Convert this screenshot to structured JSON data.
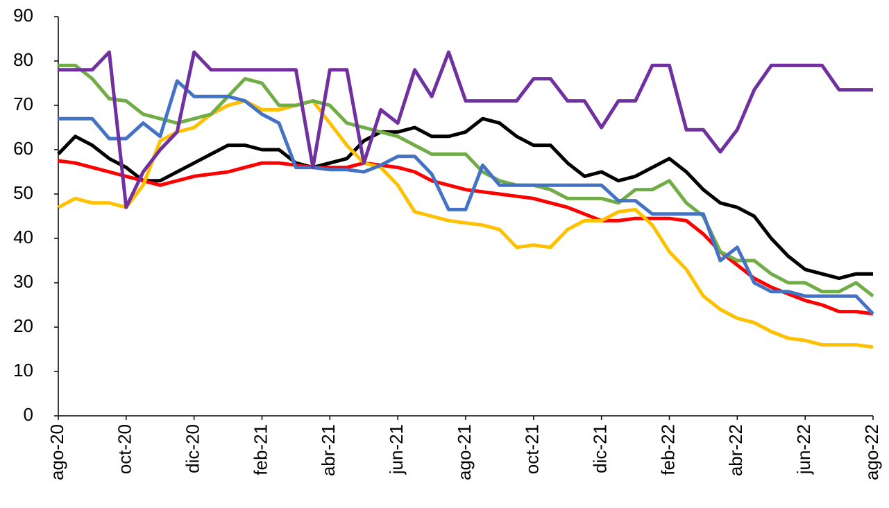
{
  "chart_data": {
    "type": "line",
    "x": [
      0,
      0.5,
      1,
      1.5,
      2,
      2.5,
      3,
      3.5,
      4,
      4.5,
      5,
      5.5,
      6,
      6.5,
      7,
      7.5,
      8,
      8.5,
      9,
      9.5,
      10,
      10.5,
      11,
      11.5,
      12,
      12.5,
      13,
      13.5,
      14,
      14.5,
      15,
      15.5,
      16,
      16.5,
      17,
      17.5,
      18,
      18.5,
      19,
      19.5,
      20,
      20.5,
      21,
      21.5,
      22,
      22.5,
      23,
      23.5,
      24
    ],
    "xlim": [
      0,
      24
    ],
    "xticks": [
      {
        "value": 0,
        "label": "ago-20"
      },
      {
        "value": 2,
        "label": "oct-20"
      },
      {
        "value": 4,
        "label": "dic-20"
      },
      {
        "value": 6,
        "label": "feb-21"
      },
      {
        "value": 8,
        "label": "abr-21"
      },
      {
        "value": 10,
        "label": "jun-21"
      },
      {
        "value": 12,
        "label": "ago-21"
      },
      {
        "value": 14,
        "label": "oct-21"
      },
      {
        "value": 16,
        "label": "dic-21"
      },
      {
        "value": 18,
        "label": "feb-22"
      },
      {
        "value": 20,
        "label": "abr-22"
      },
      {
        "value": 22,
        "label": "jun-22"
      },
      {
        "value": 24,
        "label": "ago-22"
      }
    ],
    "ylim": [
      0,
      90
    ],
    "yticks": [
      0,
      10,
      20,
      30,
      40,
      50,
      60,
      70,
      80,
      90
    ],
    "grid": false,
    "series": [
      {
        "color": "#000000",
        "values": [
          59,
          63,
          61,
          58,
          56,
          53,
          53,
          55,
          57,
          59,
          61,
          61,
          60,
          60,
          57,
          56,
          57,
          58,
          62,
          64,
          64,
          65,
          63,
          63,
          64,
          67,
          66,
          63,
          61,
          61,
          57,
          54,
          55,
          53,
          54,
          56,
          58,
          55,
          51,
          48,
          47,
          45,
          40,
          36,
          33,
          32,
          31,
          32,
          32
        ]
      },
      {
        "color": "#ff0000",
        "values": [
          57.5,
          57,
          56,
          55,
          54,
          53,
          52,
          53,
          54,
          54.5,
          55,
          56,
          57,
          57,
          56.5,
          56,
          56,
          56,
          57,
          56.5,
          56,
          55,
          53,
          52,
          51,
          50.5,
          50,
          49.5,
          49,
          48,
          47,
          45.5,
          44,
          44,
          44.5,
          44.5,
          44.5,
          44,
          41,
          37,
          34,
          31,
          29,
          27.5,
          26,
          25,
          23.5,
          23.5,
          23
        ]
      },
      {
        "color": "#ffc000",
        "values": [
          47,
          49,
          48,
          48,
          47,
          52,
          62,
          64,
          65,
          68,
          70,
          71,
          69,
          69,
          70,
          71,
          66,
          61,
          57,
          56,
          52,
          46,
          45,
          44,
          43.5,
          43,
          42,
          38,
          38.5,
          38,
          42,
          44,
          44,
          46,
          46.5,
          43,
          37,
          33,
          27,
          24,
          22,
          21,
          19,
          17.5,
          17,
          16,
          16,
          16,
          15.5
        ]
      },
      {
        "color": "#70ad47",
        "values": [
          79,
          79,
          76,
          71.5,
          71,
          68,
          67,
          66,
          67,
          68,
          72,
          76,
          75,
          70,
          70,
          71,
          70,
          66,
          65,
          64,
          63,
          61,
          59,
          59,
          59,
          55,
          53,
          52,
          52,
          51,
          49,
          49,
          49,
          48,
          51,
          51,
          53,
          48,
          45,
          37,
          35,
          35,
          32,
          30,
          30,
          28,
          28,
          30,
          27
        ]
      },
      {
        "color": "#4472c4",
        "values": [
          67,
          67,
          67,
          62.5,
          62.5,
          66,
          63,
          75.5,
          72,
          72,
          72,
          71,
          68,
          66,
          56,
          56,
          55.5,
          55.5,
          55,
          56.5,
          58.5,
          58.5,
          54.5,
          46.5,
          46.5,
          56.5,
          52,
          52,
          52,
          52,
          52,
          52,
          52,
          48.5,
          48.5,
          45.5,
          45.5,
          45.5,
          45.5,
          35,
          38,
          30,
          28,
          28,
          27,
          27,
          27,
          27,
          23
        ]
      },
      {
        "color": "#7030a0",
        "values": [
          78,
          78,
          78,
          82,
          47,
          55,
          60,
          64,
          82,
          78,
          78,
          78,
          78,
          78,
          78,
          56,
          78,
          78,
          57,
          69,
          66,
          78,
          72,
          82,
          71,
          71,
          71,
          71,
          76,
          76,
          71,
          71,
          65,
          71,
          71,
          79,
          79,
          64.5,
          64.5,
          59.5,
          64.5,
          73.5,
          79,
          79,
          79,
          79,
          73.5,
          73.5,
          73.5
        ]
      }
    ]
  }
}
